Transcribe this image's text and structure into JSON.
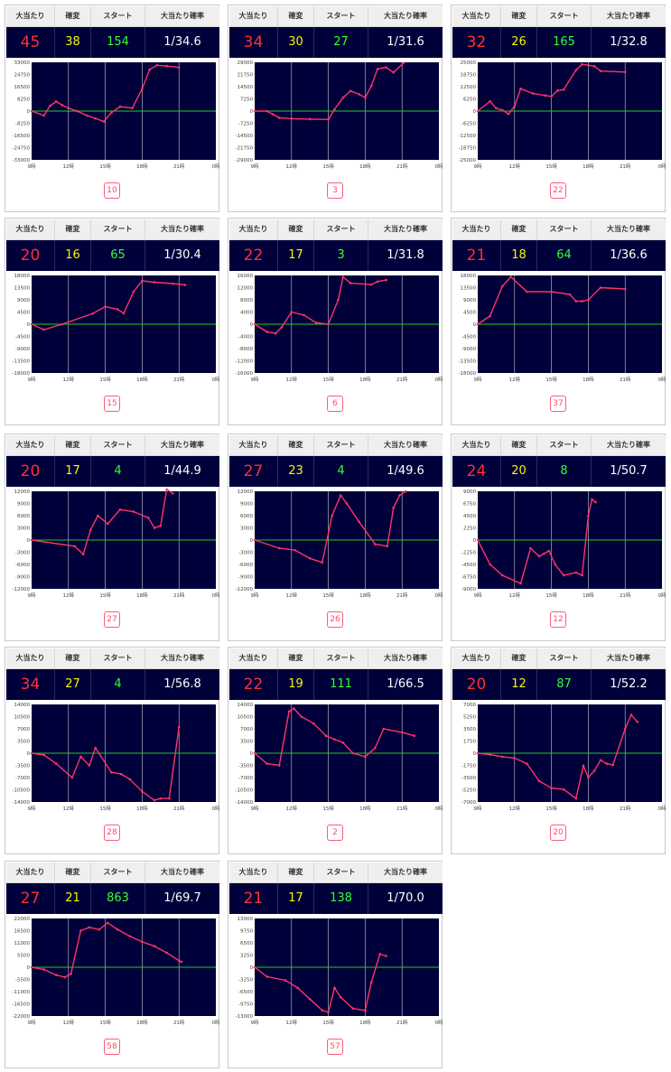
{
  "header": {
    "hit": "大当たり",
    "kakuhen": "確変",
    "start": "スタート",
    "prob": "大当たり確率"
  },
  "x_ticks": [
    "9時",
    "12時",
    "15時",
    "18時",
    "21時",
    "0時"
  ],
  "colors": {
    "plot_bg": "#00003a",
    "line": "#ff3366",
    "zero_line": "#22cc22",
    "grid": "#ffffff"
  },
  "cards": [
    {
      "hit": "45",
      "kakuhen": "38",
      "start": "154",
      "prob": "1/34.6",
      "badge": "10",
      "yticks": [
        "33000",
        "24750",
        "16500",
        "8250",
        "0",
        "-8250",
        "-16500",
        "-24750",
        "-33000"
      ],
      "chart_data": {
        "type": "line",
        "ylim": [
          -33000,
          33000
        ],
        "x_unit": "hour",
        "x": [
          9,
          10,
          10.5,
          11,
          11.5,
          12,
          12.7,
          13.5,
          14.2,
          14.9,
          15.5,
          16.2,
          17.2,
          18,
          18.6,
          19.2,
          20,
          21
        ],
        "y": [
          0,
          -3000,
          3500,
          6500,
          4000,
          2000,
          0,
          -3000,
          -5000,
          -7000,
          -1000,
          3000,
          2000,
          15000,
          28000,
          31000,
          30500,
          29500
        ]
      }
    },
    {
      "hit": "34",
      "kakuhen": "30",
      "start": "27",
      "prob": "1/31.6",
      "badge": "3",
      "yticks": [
        "29000",
        "21750",
        "14500",
        "7250",
        "0",
        "-7250",
        "-14500",
        "-21750",
        "-29000"
      ],
      "chart_data": {
        "type": "line",
        "ylim": [
          -29000,
          29000
        ],
        "x_unit": "hour",
        "x": [
          9,
          10,
          10.5,
          11,
          12,
          13.5,
          15,
          15.5,
          16.2,
          16.8,
          17.5,
          18,
          18.5,
          19,
          19.7,
          20.3,
          21.1
        ],
        "y": [
          0,
          0,
          -2000,
          -4000,
          -4500,
          -4800,
          -5000,
          1000,
          8000,
          12000,
          10000,
          8000,
          15000,
          25000,
          26000,
          23000,
          28500
        ]
      }
    },
    {
      "hit": "32",
      "kakuhen": "26",
      "start": "165",
      "prob": "1/32.8",
      "badge": "22",
      "yticks": [
        "25000",
        "18750",
        "12500",
        "6250",
        "0",
        "-6250",
        "-12500",
        "-18750",
        "-25000"
      ],
      "chart_data": {
        "type": "line",
        "ylim": [
          -25000,
          25000
        ],
        "x_unit": "hour",
        "x": [
          9,
          10,
          10.5,
          11,
          11.5,
          12,
          12.5,
          13.5,
          14.5,
          15,
          15.5,
          16,
          17,
          17.5,
          18,
          18.5,
          19,
          21
        ],
        "y": [
          0,
          5000,
          1500,
          500,
          -1500,
          2500,
          11500,
          9000,
          8000,
          7500,
          10500,
          11000,
          21000,
          24000,
          23500,
          23000,
          20500,
          20000
        ]
      }
    },
    {
      "hit": "20",
      "kakuhen": "16",
      "start": "65",
      "prob": "1/30.4",
      "badge": "15",
      "yticks": [
        "18000",
        "13500",
        "9000",
        "4500",
        "0",
        "-4500",
        "-9000",
        "-13500",
        "-18000"
      ],
      "chart_data": {
        "type": "line",
        "ylim": [
          -18000,
          18000
        ],
        "x_unit": "hour",
        "x": [
          9,
          10,
          11.5,
          14,
          15,
          16,
          16.5,
          17.3,
          18,
          19,
          20.5,
          21.5
        ],
        "y": [
          0,
          -2000,
          0,
          4000,
          6500,
          5500,
          4000,
          12000,
          16000,
          15500,
          15000,
          14500
        ]
      }
    },
    {
      "hit": "22",
      "kakuhen": "17",
      "start": "3",
      "prob": "1/31.8",
      "badge": "6",
      "yticks": [
        "16000",
        "12000",
        "8000",
        "4000",
        "0",
        "-4000",
        "-8000",
        "-12000",
        "-16000"
      ],
      "chart_data": {
        "type": "line",
        "ylim": [
          -16000,
          16000
        ],
        "x_unit": "hour",
        "x": [
          9,
          10,
          10.7,
          11.2,
          12,
          13,
          14,
          15,
          15.8,
          16.2,
          16.8,
          18.5,
          19,
          19.7
        ],
        "y": [
          0,
          -2500,
          -3000,
          -1000,
          4000,
          3000,
          500,
          0,
          8000,
          15500,
          13500,
          13000,
          14000,
          14500
        ]
      }
    },
    {
      "hit": "21",
      "kakuhen": "18",
      "start": "64",
      "prob": "1/36.6",
      "badge": "37",
      "yticks": [
        "18000",
        "13500",
        "9000",
        "4500",
        "0",
        "-4500",
        "-9000",
        "-13500",
        "-18000"
      ],
      "chart_data": {
        "type": "line",
        "ylim": [
          -18000,
          18000
        ],
        "x_unit": "hour",
        "x": [
          9,
          10,
          11,
          11.7,
          13,
          15,
          16.5,
          17,
          17.5,
          18,
          19,
          21
        ],
        "y": [
          0,
          3000,
          14000,
          17500,
          12000,
          12000,
          11000,
          8500,
          8500,
          9000,
          13500,
          13000
        ]
      }
    },
    {
      "hit": "20",
      "kakuhen": "17",
      "start": "4",
      "prob": "1/44.9",
      "badge": "27",
      "yticks": [
        "12000",
        "9000",
        "6000",
        "3000",
        "0",
        "-3000",
        "-6000",
        "-9000",
        "-12000"
      ],
      "chart_data": {
        "type": "line",
        "ylim": [
          -12000,
          12000
        ],
        "x_unit": "hour",
        "x": [
          9,
          12.5,
          13.2,
          13.8,
          14.4,
          15.2,
          16.2,
          17.3,
          18.5,
          19,
          19.5,
          20,
          20.5
        ],
        "y": [
          0,
          -1500,
          -3500,
          2500,
          6000,
          4000,
          7500,
          7000,
          5500,
          3000,
          3500,
          12500,
          11500
        ]
      }
    },
    {
      "hit": "27",
      "kakuhen": "23",
      "start": "4",
      "prob": "1/49.6",
      "badge": "26",
      "yticks": [
        "12000",
        "9000",
        "6000",
        "3000",
        "0",
        "-3000",
        "-6000",
        "-9000",
        "-12000"
      ],
      "chart_data": {
        "type": "line",
        "ylim": [
          -12000,
          12000
        ],
        "x_unit": "hour",
        "x": [
          9,
          11,
          12.3,
          13.5,
          14.5,
          15.3,
          16,
          16.5,
          17.5,
          18.8,
          19.8,
          20.3,
          20.8,
          21.3
        ],
        "y": [
          0,
          -2000,
          -2500,
          -4500,
          -5500,
          6000,
          11000,
          9000,
          4500,
          -1000,
          -1500,
          8000,
          11000,
          12000
        ]
      }
    },
    {
      "hit": "24",
      "kakuhen": "20",
      "start": "8",
      "prob": "1/50.7",
      "badge": "12",
      "yticks": [
        "9000",
        "6750",
        "4500",
        "2250",
        "0",
        "-2250",
        "-4500",
        "-6750",
        "-9000"
      ],
      "chart_data": {
        "type": "line",
        "ylim": [
          -9000,
          9000
        ],
        "x_unit": "hour",
        "x": [
          9,
          10,
          11,
          12.5,
          13.3,
          14,
          14.4,
          14.8,
          15.3,
          16,
          17,
          17.5,
          18,
          18.3,
          18.6
        ],
        "y": [
          0,
          -4500,
          -6500,
          -8000,
          -1500,
          -3000,
          -2500,
          -2000,
          -4500,
          -6500,
          -6000,
          -6500,
          4500,
          7500,
          7000
        ]
      }
    },
    {
      "hit": "34",
      "kakuhen": "27",
      "start": "4",
      "prob": "1/56.8",
      "badge": "28",
      "yticks": [
        "14000",
        "10500",
        "7000",
        "3500",
        "0",
        "-3500",
        "-7000",
        "-10500",
        "-14000"
      ],
      "chart_data": {
        "type": "line",
        "ylim": [
          -14000,
          14000
        ],
        "x_unit": "hour",
        "x": [
          9,
          10,
          11,
          12.3,
          13,
          13.7,
          14.2,
          15.5,
          16.3,
          17,
          18,
          19,
          19.5,
          20.2,
          21
        ],
        "y": [
          0,
          -500,
          -3000,
          -7000,
          -1000,
          -3500,
          1500,
          -5500,
          -6000,
          -7500,
          -11000,
          -13500,
          -13000,
          -13000,
          7500
        ]
      }
    },
    {
      "hit": "22",
      "kakuhen": "19",
      "start": "111",
      "prob": "1/66.5",
      "badge": "2",
      "yticks": [
        "14000",
        "10500",
        "7000",
        "3500",
        "0",
        "-3500",
        "-7000",
        "-10500",
        "-14000"
      ],
      "chart_data": {
        "type": "line",
        "ylim": [
          -14000,
          14000
        ],
        "x_unit": "hour",
        "x": [
          9,
          10,
          11,
          11.8,
          12.2,
          12.8,
          13.8,
          14.8,
          15.5,
          16.2,
          17,
          18,
          18.8,
          19.5,
          21,
          22
        ],
        "y": [
          0,
          -3000,
          -3500,
          12000,
          12800,
          10500,
          8500,
          5000,
          4000,
          3000,
          0,
          -1000,
          1500,
          7000,
          6000,
          5000
        ]
      }
    },
    {
      "hit": "20",
      "kakuhen": "12",
      "start": "87",
      "prob": "1/52.2",
      "badge": "20",
      "yticks": [
        "7000",
        "5250",
        "3500",
        "1750",
        "0",
        "-1750",
        "-3500",
        "-5250",
        "-7000"
      ],
      "chart_data": {
        "type": "line",
        "ylim": [
          -7000,
          7000
        ],
        "x_unit": "hour",
        "x": [
          9,
          10,
          11,
          12,
          13,
          14,
          15,
          16,
          17,
          17.6,
          18,
          18.5,
          19,
          19.5,
          20,
          21,
          21.5,
          22
        ],
        "y": [
          0,
          -200,
          -500,
          -700,
          -1500,
          -4000,
          -5000,
          -5200,
          -6500,
          -1800,
          -3500,
          -2500,
          -1000,
          -1500,
          -1700,
          3500,
          5500,
          4500
        ]
      }
    },
    {
      "hit": "27",
      "kakuhen": "21",
      "start": "863",
      "prob": "1/69.7",
      "badge": "58",
      "yticks": [
        "22000",
        "16500",
        "11000",
        "5500",
        "0",
        "-5500",
        "-11000",
        "-16500",
        "-22000"
      ],
      "chart_data": {
        "type": "line",
        "ylim": [
          -22000,
          22000
        ],
        "x_unit": "hour",
        "x": [
          9,
          10,
          11,
          11.7,
          12.2,
          13,
          13.7,
          14.5,
          15.2,
          16,
          17,
          18,
          19,
          20,
          21,
          21.2
        ],
        "y": [
          0,
          -1000,
          -3500,
          -4500,
          -3000,
          16500,
          18000,
          17000,
          20000,
          17000,
          14000,
          11500,
          9500,
          6500,
          3000,
          2500
        ]
      }
    },
    {
      "hit": "21",
      "kakuhen": "17",
      "start": "138",
      "prob": "1/70.0",
      "badge": "57",
      "yticks": [
        "13000",
        "9750",
        "6500",
        "3250",
        "0",
        "-3250",
        "-6500",
        "-9750",
        "-13000"
      ],
      "chart_data": {
        "type": "line",
        "ylim": [
          -13000,
          13000
        ],
        "x_unit": "hour",
        "x": [
          9,
          10,
          11.5,
          12.5,
          13.5,
          14.5,
          15,
          15.5,
          16,
          17,
          18,
          18.5,
          19.2,
          19.7
        ],
        "y": [
          0,
          -2500,
          -3500,
          -5500,
          -8500,
          -11500,
          -12000,
          -5500,
          -8000,
          -11000,
          -11500,
          -4000,
          3500,
          3000
        ]
      }
    }
  ]
}
